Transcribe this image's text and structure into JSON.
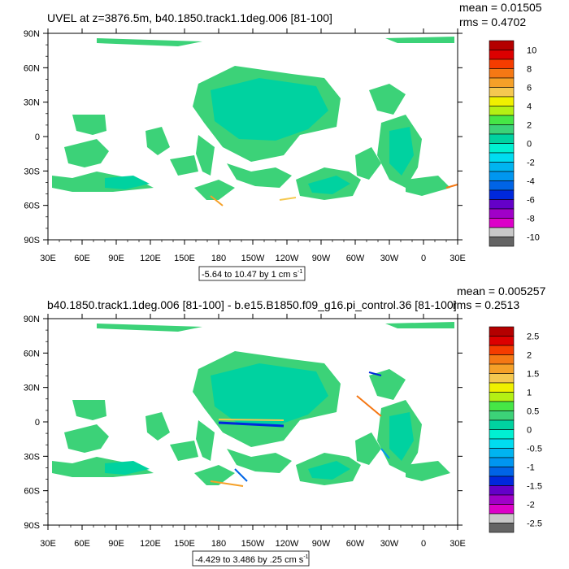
{
  "chart_data": [
    {
      "type": "heatmap",
      "title": "UVEL at z=3876.5m, b40.1850.track1.1deg.006 [81-100]",
      "stats": {
        "mean": "mean = 0.01505",
        "rms": "rms = 0.4702"
      },
      "lon_ticks": [
        "30E",
        "60E",
        "90E",
        "120E",
        "150E",
        "180",
        "150W",
        "120W",
        "90W",
        "60W",
        "30W",
        "0",
        "30E"
      ],
      "lat_ticks": [
        "90N",
        "60N",
        "30N",
        "0",
        "30S",
        "60S",
        "90S"
      ],
      "range_label": "-5.64 to 10.47 by 1 cm s",
      "range_unit_sup": "-1",
      "colorbar": {
        "labels": [
          "10",
          "8",
          "6",
          "4",
          "2",
          "0",
          "-2",
          "-4",
          "-6",
          "-8",
          "-10"
        ],
        "colors": [
          "#b40000",
          "#dc0000",
          "#f53c00",
          "#f57814",
          "#f5a028",
          "#f5c850",
          "#f0f000",
          "#b4f014",
          "#46e646",
          "#3cd278",
          "#00d2a0",
          "#00f0d2",
          "#00dcf0",
          "#00b4f0",
          "#0096f0",
          "#0064e6",
          "#0028dc",
          "#6400c8",
          "#a000c8",
          "#dc00c8",
          "#c8c8c8",
          "#646464"
        ]
      }
    },
    {
      "type": "heatmap",
      "title": "b40.1850.track1.1deg.006 [81-100] - b.e15.B1850.f09_g16.pi_control.36 [81-100]",
      "stats": {
        "mean": "mean = 0.005257",
        "rms": "rms = 0.2513"
      },
      "lon_ticks": [
        "30E",
        "60E",
        "90E",
        "120E",
        "150E",
        "180",
        "150W",
        "120W",
        "90W",
        "60W",
        "30W",
        "0",
        "30E"
      ],
      "lat_ticks": [
        "90N",
        "60N",
        "30N",
        "0",
        "30S",
        "60S",
        "90S"
      ],
      "range_label": "-4.429 to 3.486 by .25 cm s",
      "range_unit_sup": "-1",
      "colorbar": {
        "labels": [
          "2.5",
          "2",
          "1.5",
          "1",
          "0.5",
          "0",
          "-0.5",
          "-1",
          "-1.5",
          "-2",
          "-2.5"
        ],
        "colors": [
          "#b40000",
          "#dc0000",
          "#f53c00",
          "#f57814",
          "#f5a028",
          "#f5c850",
          "#f0f000",
          "#b4f014",
          "#46e646",
          "#3cd278",
          "#00d2a0",
          "#00f0d2",
          "#00dcf0",
          "#00b4f0",
          "#0096f0",
          "#0064e6",
          "#0028dc",
          "#6400c8",
          "#a000c8",
          "#dc00c8",
          "#c8c8c8",
          "#646464"
        ]
      }
    }
  ]
}
